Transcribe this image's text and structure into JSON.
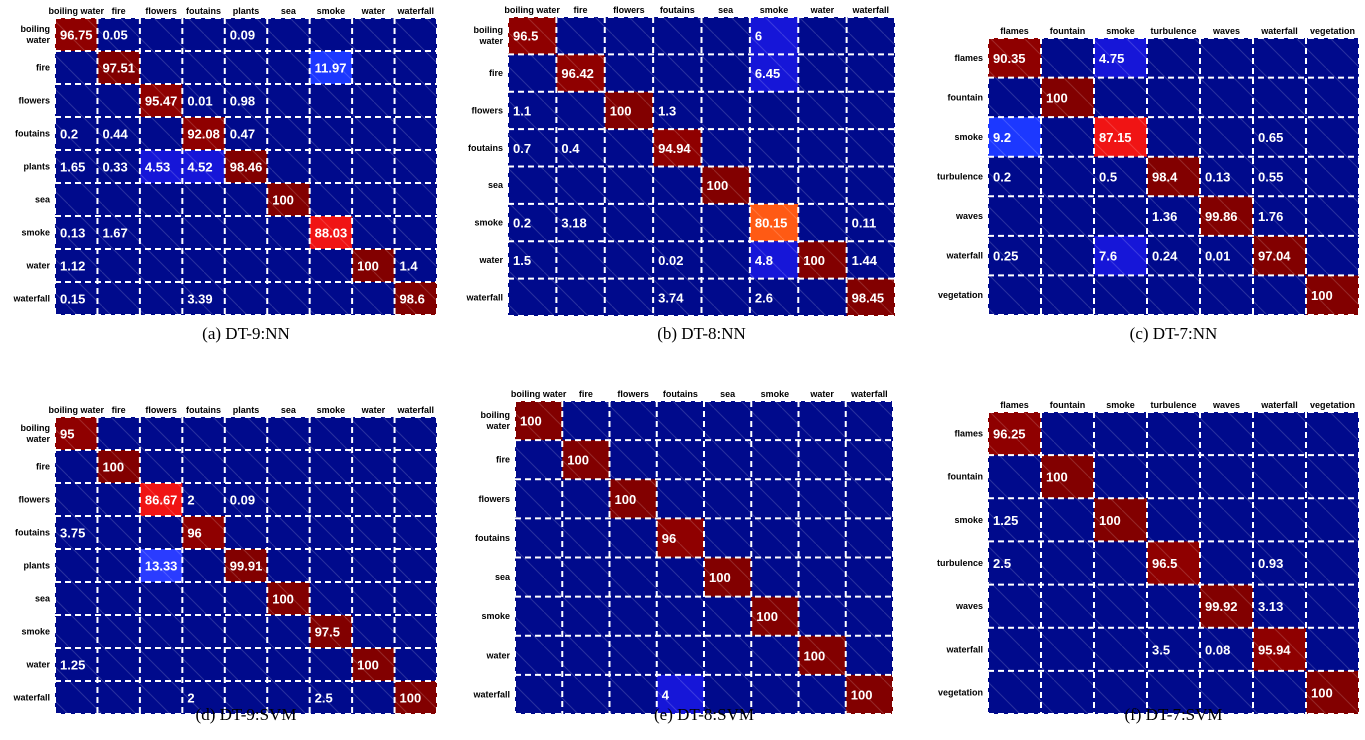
{
  "chart_data": [
    {
      "type": "heatmap",
      "caption": "(a) DT-9:NN",
      "col_labels": [
        "boiling water",
        "fire",
        "flowers",
        "foutains",
        "plants",
        "sea",
        "smoke",
        "water",
        "waterfall"
      ],
      "row_labels": [
        [
          "boiling",
          "water"
        ],
        [
          "fire"
        ],
        [
          "flowers"
        ],
        [
          "foutains"
        ],
        [
          "plants"
        ],
        [
          "sea"
        ],
        [
          "smoke"
        ],
        [
          "water"
        ],
        [
          "waterfall"
        ]
      ],
      "cells": [
        [
          0,
          0,
          96.75
        ],
        [
          0,
          1,
          0.05
        ],
        [
          0,
          4,
          0.09
        ],
        [
          1,
          1,
          97.51
        ],
        [
          1,
          6,
          11.97
        ],
        [
          2,
          2,
          95.47
        ],
        [
          2,
          3,
          0.01
        ],
        [
          2,
          4,
          0.98
        ],
        [
          3,
          0,
          0.2
        ],
        [
          3,
          1,
          0.44
        ],
        [
          3,
          3,
          92.08
        ],
        [
          3,
          4,
          0.47
        ],
        [
          4,
          0,
          1.65
        ],
        [
          4,
          1,
          0.33
        ],
        [
          4,
          2,
          4.53
        ],
        [
          4,
          3,
          4.52
        ],
        [
          4,
          4,
          98.46
        ],
        [
          5,
          5,
          100
        ],
        [
          6,
          0,
          0.13
        ],
        [
          6,
          1,
          1.67
        ],
        [
          6,
          6,
          88.03
        ],
        [
          7,
          0,
          1.12
        ],
        [
          7,
          7,
          100
        ],
        [
          7,
          8,
          1.4
        ],
        [
          8,
          0,
          0.15
        ],
        [
          8,
          3,
          3.39
        ],
        [
          8,
          8,
          98.6
        ]
      ]
    },
    {
      "type": "heatmap",
      "caption": "(b) DT-8:NN",
      "col_labels": [
        "boiling water",
        "fire",
        "flowers",
        "foutains",
        "sea",
        "smoke",
        "water",
        "waterfall"
      ],
      "row_labels": [
        [
          "boiling",
          "water"
        ],
        [
          "fire"
        ],
        [
          "flowers"
        ],
        [
          "foutains"
        ],
        [
          "sea"
        ],
        [
          "smoke"
        ],
        [
          "water"
        ],
        [
          "waterfall"
        ]
      ],
      "cells": [
        [
          0,
          0,
          96.5
        ],
        [
          0,
          5,
          6
        ],
        [
          1,
          1,
          96.42
        ],
        [
          1,
          5,
          6.45
        ],
        [
          2,
          0,
          1.1
        ],
        [
          2,
          2,
          100
        ],
        [
          2,
          3,
          1.3
        ],
        [
          3,
          0,
          0.7
        ],
        [
          3,
          1,
          0.4
        ],
        [
          3,
          3,
          94.94
        ],
        [
          4,
          4,
          100
        ],
        [
          5,
          0,
          0.2
        ],
        [
          5,
          1,
          3.18
        ],
        [
          5,
          5,
          80.15
        ],
        [
          5,
          7,
          0.11
        ],
        [
          6,
          0,
          1.5
        ],
        [
          6,
          3,
          0.02
        ],
        [
          6,
          5,
          4.8
        ],
        [
          6,
          6,
          100
        ],
        [
          6,
          7,
          1.44
        ],
        [
          7,
          3,
          3.74
        ],
        [
          7,
          5,
          2.6
        ],
        [
          7,
          7,
          98.45
        ]
      ]
    },
    {
      "type": "heatmap",
      "caption": "(c) DT-7:NN",
      "col_labels": [
        "flames",
        "fountain",
        "smoke",
        "turbulence",
        "waves",
        "waterfall",
        "vegetation"
      ],
      "row_labels": [
        [
          "flames"
        ],
        [
          "fountain"
        ],
        [
          "smoke"
        ],
        [
          "turbulence"
        ],
        [
          "waves"
        ],
        [
          "waterfall"
        ],
        [
          "vegetation"
        ]
      ],
      "cells": [
        [
          0,
          0,
          90.35
        ],
        [
          0,
          2,
          4.75
        ],
        [
          1,
          1,
          100
        ],
        [
          2,
          0,
          9.2
        ],
        [
          2,
          2,
          87.15
        ],
        [
          2,
          5,
          0.65
        ],
        [
          3,
          0,
          0.2
        ],
        [
          3,
          2,
          0.5
        ],
        [
          3,
          3,
          98.4
        ],
        [
          3,
          4,
          0.13
        ],
        [
          3,
          5,
          0.55
        ],
        [
          4,
          3,
          1.36
        ],
        [
          4,
          4,
          99.86
        ],
        [
          4,
          5,
          1.76
        ],
        [
          5,
          0,
          0.25
        ],
        [
          5,
          2,
          7.6
        ],
        [
          5,
          3,
          0.24
        ],
        [
          5,
          4,
          0.01
        ],
        [
          5,
          5,
          97.04
        ],
        [
          6,
          6,
          100
        ]
      ]
    },
    {
      "type": "heatmap",
      "caption": "(d) DT-9:SVM",
      "col_labels": [
        "boiling water",
        "fire",
        "flowers",
        "foutains",
        "plants",
        "sea",
        "smoke",
        "water",
        "waterfall"
      ],
      "row_labels": [
        [
          "boiling",
          "water"
        ],
        [
          "fire"
        ],
        [
          "flowers"
        ],
        [
          "foutains"
        ],
        [
          "plants"
        ],
        [
          "sea"
        ],
        [
          "smoke"
        ],
        [
          "water"
        ],
        [
          "waterfall"
        ]
      ],
      "cells": [
        [
          0,
          0,
          95
        ],
        [
          1,
          1,
          100
        ],
        [
          2,
          2,
          86.67
        ],
        [
          2,
          3,
          2
        ],
        [
          2,
          4,
          0.09
        ],
        [
          3,
          0,
          3.75
        ],
        [
          3,
          3,
          96
        ],
        [
          4,
          2,
          13.33
        ],
        [
          4,
          4,
          99.91
        ],
        [
          5,
          5,
          100
        ],
        [
          6,
          6,
          97.5
        ],
        [
          7,
          0,
          1.25
        ],
        [
          7,
          7,
          100
        ],
        [
          8,
          3,
          2
        ],
        [
          8,
          6,
          2.5
        ],
        [
          8,
          8,
          100
        ]
      ]
    },
    {
      "type": "heatmap",
      "caption": "(e) DT-8:SVM",
      "col_labels": [
        "boiling water",
        "fire",
        "flowers",
        "foutains",
        "sea",
        "smoke",
        "water",
        "waterfall"
      ],
      "row_labels": [
        [
          "boiling",
          "water"
        ],
        [
          "fire"
        ],
        [
          "flowers"
        ],
        [
          "foutains"
        ],
        [
          "sea"
        ],
        [
          "smoke"
        ],
        [
          "water"
        ],
        [
          "waterfall"
        ]
      ],
      "cells": [
        [
          0,
          0,
          100
        ],
        [
          1,
          1,
          100
        ],
        [
          2,
          2,
          100
        ],
        [
          3,
          3,
          96
        ],
        [
          4,
          4,
          100
        ],
        [
          5,
          5,
          100
        ],
        [
          6,
          6,
          100
        ],
        [
          7,
          3,
          4
        ],
        [
          7,
          7,
          100
        ]
      ]
    },
    {
      "type": "heatmap",
      "caption": "(f) DT-7:SVM",
      "col_labels": [
        "flames",
        "fountain",
        "smoke",
        "turbulence",
        "waves",
        "waterfall",
        "vegetation"
      ],
      "row_labels": [
        [
          "flames"
        ],
        [
          "fountain"
        ],
        [
          "smoke"
        ],
        [
          "turbulence"
        ],
        [
          "waves"
        ],
        [
          "waterfall"
        ],
        [
          "vegetation"
        ]
      ],
      "cells": [
        [
          0,
          0,
          96.25
        ],
        [
          1,
          1,
          100
        ],
        [
          2,
          0,
          1.25
        ],
        [
          2,
          2,
          100
        ],
        [
          3,
          0,
          2.5
        ],
        [
          3,
          3,
          96.5
        ],
        [
          3,
          5,
          0.93
        ],
        [
          4,
          4,
          99.92
        ],
        [
          4,
          5,
          3.13
        ],
        [
          5,
          3,
          3.5
        ],
        [
          5,
          4,
          0.08
        ],
        [
          5,
          5,
          95.94
        ],
        [
          6,
          6,
          100
        ]
      ]
    }
  ]
}
